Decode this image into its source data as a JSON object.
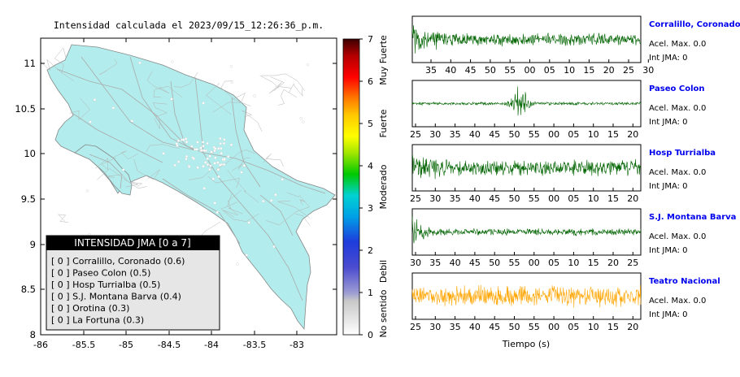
{
  "map": {
    "title": "Intensidad calculada el 2023/09/15_12:26:36_p.m.",
    "x_ticks": [
      "-86",
      "-85.5",
      "-85",
      "-84.5",
      "-84",
      "-83.5",
      "-83"
    ],
    "y_ticks": [
      "11",
      "10.5",
      "10",
      "9.5",
      "9",
      "8.5",
      "8"
    ],
    "land_color": "#b2ecec",
    "legend": {
      "title": "INTENSIDAD JMA [0 a 7]",
      "items": [
        "[ 0 ]  Corralillo, Coronado (0.6)",
        "[ 0 ]  Paseo Colon (0.5)",
        "[ 0 ]  Hosp Turrialba (0.5)",
        "[ 0 ]  S.J. Montana Barva (0.4)",
        "[ 0 ]  Orotina (0.3)",
        "[ 0 ]  La Fortuna (0.3)"
      ]
    }
  },
  "colorbar": {
    "ticks": [
      "0",
      "1",
      "2",
      "3",
      "4",
      "5",
      "6",
      "7"
    ],
    "categories": [
      "No sentido",
      "Debil",
      "Moderado",
      "Fuerte",
      "Muy Fuerte"
    ]
  },
  "waveforms": {
    "xlabel": "Tiempo (s)",
    "panels": [
      {
        "station": "Corralillo, Coronado",
        "acel": "Acel. Max. 0.0",
        "int": "Int JMA: 0",
        "color": "#006400",
        "ticks": [
          "35",
          "40",
          "45",
          "50",
          "55",
          "00",
          "05",
          "10",
          "15",
          "20",
          "25",
          "30"
        ]
      },
      {
        "station": "Paseo Colon",
        "acel": "Acel. Max. 0.0",
        "int": "Int JMA: 0",
        "color": "#006400",
        "ticks": [
          "25",
          "30",
          "35",
          "40",
          "45",
          "50",
          "55",
          "00",
          "05",
          "10",
          "15",
          "20"
        ]
      },
      {
        "station": "Hosp Turrialba",
        "acel": "Acel. Max. 0.0",
        "int": "Int JMA: 0",
        "color": "#006400",
        "ticks": [
          "25",
          "30",
          "35",
          "40",
          "45",
          "50",
          "55",
          "00",
          "05",
          "10",
          "15",
          "20"
        ]
      },
      {
        "station": "S.J. Montana Barva",
        "acel": "Acel. Max. 0.0",
        "int": "Int JMA: 0",
        "color": "#006400",
        "ticks": [
          "30",
          "35",
          "40",
          "45",
          "50",
          "55",
          "00",
          "05",
          "10",
          "15",
          "20",
          "25"
        ]
      },
      {
        "station": "Teatro Nacional",
        "acel": "Acel. Max. 0.0",
        "int": "Int JMA: 0",
        "color": "#ffa500",
        "ticks": [
          "25",
          "30",
          "35",
          "40",
          "45",
          "50",
          "55",
          "00",
          "05",
          "10",
          "15",
          "20"
        ]
      }
    ]
  },
  "chart_data": [
    {
      "type": "map",
      "title": "Intensidad calculada el 2023/09/15_12:26:36_p.m.",
      "xlim": [
        -86,
        -82.5
      ],
      "ylim": [
        8,
        11.3
      ],
      "stations": [
        {
          "name": "Corralillo, Coronado",
          "intensity": 0.6
        },
        {
          "name": "Paseo Colon",
          "intensity": 0.5
        },
        {
          "name": "Hosp Turrialba",
          "intensity": 0.5
        },
        {
          "name": "S.J. Montana Barva",
          "intensity": 0.4
        },
        {
          "name": "Orotina",
          "intensity": 0.3
        },
        {
          "name": "La Fortuna",
          "intensity": 0.3
        }
      ]
    },
    {
      "type": "line",
      "xlabel": "Tiempo (s)",
      "series": [
        {
          "name": "Corralillo, Coronado",
          "max_acel": 0.0,
          "int_jma": 0
        },
        {
          "name": "Paseo Colon",
          "max_acel": 0.0,
          "int_jma": 0
        },
        {
          "name": "Hosp Turrialba",
          "max_acel": 0.0,
          "int_jma": 0
        },
        {
          "name": "S.J. Montana Barva",
          "max_acel": 0.0,
          "int_jma": 0
        },
        {
          "name": "Teatro Nacional",
          "max_acel": 0.0,
          "int_jma": 0
        }
      ]
    }
  ]
}
